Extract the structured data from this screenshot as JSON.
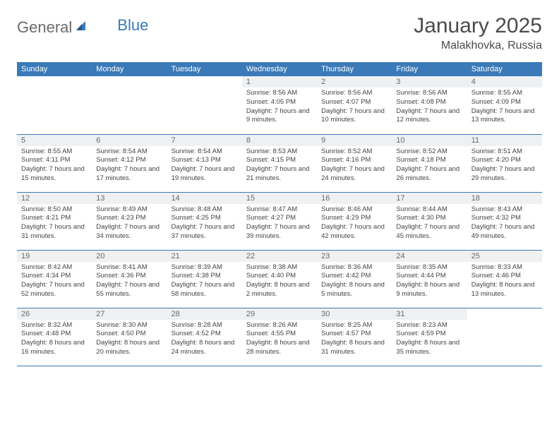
{
  "brand": {
    "part1": "General",
    "part2": "Blue"
  },
  "title": "January 2025",
  "location": "Malakhovka, Russia",
  "colors": {
    "header_bg": "#3a7ab8",
    "header_fg": "#ffffff",
    "daynum_bg": "#eef0f2",
    "daynum_fg": "#6a6a6a",
    "text": "#444444",
    "border": "#3a7ab8",
    "logo_gray": "#6b6b6b",
    "logo_blue": "#3a7ab8"
  },
  "day_headers": [
    "Sunday",
    "Monday",
    "Tuesday",
    "Wednesday",
    "Thursday",
    "Friday",
    "Saturday"
  ],
  "weeks": [
    [
      {
        "n": "",
        "t": ""
      },
      {
        "n": "",
        "t": ""
      },
      {
        "n": "",
        "t": ""
      },
      {
        "n": "1",
        "t": "Sunrise: 8:56 AM\nSunset: 4:05 PM\nDaylight: 7 hours and 9 minutes."
      },
      {
        "n": "2",
        "t": "Sunrise: 8:56 AM\nSunset: 4:07 PM\nDaylight: 7 hours and 10 minutes."
      },
      {
        "n": "3",
        "t": "Sunrise: 8:56 AM\nSunset: 4:08 PM\nDaylight: 7 hours and 12 minutes."
      },
      {
        "n": "4",
        "t": "Sunrise: 8:55 AM\nSunset: 4:09 PM\nDaylight: 7 hours and 13 minutes."
      }
    ],
    [
      {
        "n": "5",
        "t": "Sunrise: 8:55 AM\nSunset: 4:11 PM\nDaylight: 7 hours and 15 minutes."
      },
      {
        "n": "6",
        "t": "Sunrise: 8:54 AM\nSunset: 4:12 PM\nDaylight: 7 hours and 17 minutes."
      },
      {
        "n": "7",
        "t": "Sunrise: 8:54 AM\nSunset: 4:13 PM\nDaylight: 7 hours and 19 minutes."
      },
      {
        "n": "8",
        "t": "Sunrise: 8:53 AM\nSunset: 4:15 PM\nDaylight: 7 hours and 21 minutes."
      },
      {
        "n": "9",
        "t": "Sunrise: 8:52 AM\nSunset: 4:16 PM\nDaylight: 7 hours and 24 minutes."
      },
      {
        "n": "10",
        "t": "Sunrise: 8:52 AM\nSunset: 4:18 PM\nDaylight: 7 hours and 26 minutes."
      },
      {
        "n": "11",
        "t": "Sunrise: 8:51 AM\nSunset: 4:20 PM\nDaylight: 7 hours and 29 minutes."
      }
    ],
    [
      {
        "n": "12",
        "t": "Sunrise: 8:50 AM\nSunset: 4:21 PM\nDaylight: 7 hours and 31 minutes."
      },
      {
        "n": "13",
        "t": "Sunrise: 8:49 AM\nSunset: 4:23 PM\nDaylight: 7 hours and 34 minutes."
      },
      {
        "n": "14",
        "t": "Sunrise: 8:48 AM\nSunset: 4:25 PM\nDaylight: 7 hours and 37 minutes."
      },
      {
        "n": "15",
        "t": "Sunrise: 8:47 AM\nSunset: 4:27 PM\nDaylight: 7 hours and 39 minutes."
      },
      {
        "n": "16",
        "t": "Sunrise: 8:46 AM\nSunset: 4:29 PM\nDaylight: 7 hours and 42 minutes."
      },
      {
        "n": "17",
        "t": "Sunrise: 8:44 AM\nSunset: 4:30 PM\nDaylight: 7 hours and 45 minutes."
      },
      {
        "n": "18",
        "t": "Sunrise: 8:43 AM\nSunset: 4:32 PM\nDaylight: 7 hours and 49 minutes."
      }
    ],
    [
      {
        "n": "19",
        "t": "Sunrise: 8:42 AM\nSunset: 4:34 PM\nDaylight: 7 hours and 52 minutes."
      },
      {
        "n": "20",
        "t": "Sunrise: 8:41 AM\nSunset: 4:36 PM\nDaylight: 7 hours and 55 minutes."
      },
      {
        "n": "21",
        "t": "Sunrise: 8:39 AM\nSunset: 4:38 PM\nDaylight: 7 hours and 58 minutes."
      },
      {
        "n": "22",
        "t": "Sunrise: 8:38 AM\nSunset: 4:40 PM\nDaylight: 8 hours and 2 minutes."
      },
      {
        "n": "23",
        "t": "Sunrise: 8:36 AM\nSunset: 4:42 PM\nDaylight: 8 hours and 5 minutes."
      },
      {
        "n": "24",
        "t": "Sunrise: 8:35 AM\nSunset: 4:44 PM\nDaylight: 8 hours and 9 minutes."
      },
      {
        "n": "25",
        "t": "Sunrise: 8:33 AM\nSunset: 4:46 PM\nDaylight: 8 hours and 13 minutes."
      }
    ],
    [
      {
        "n": "26",
        "t": "Sunrise: 8:32 AM\nSunset: 4:48 PM\nDaylight: 8 hours and 16 minutes."
      },
      {
        "n": "27",
        "t": "Sunrise: 8:30 AM\nSunset: 4:50 PM\nDaylight: 8 hours and 20 minutes."
      },
      {
        "n": "28",
        "t": "Sunrise: 8:28 AM\nSunset: 4:52 PM\nDaylight: 8 hours and 24 minutes."
      },
      {
        "n": "29",
        "t": "Sunrise: 8:26 AM\nSunset: 4:55 PM\nDaylight: 8 hours and 28 minutes."
      },
      {
        "n": "30",
        "t": "Sunrise: 8:25 AM\nSunset: 4:57 PM\nDaylight: 8 hours and 31 minutes."
      },
      {
        "n": "31",
        "t": "Sunrise: 8:23 AM\nSunset: 4:59 PM\nDaylight: 8 hours and 35 minutes."
      },
      {
        "n": "",
        "t": ""
      }
    ]
  ]
}
